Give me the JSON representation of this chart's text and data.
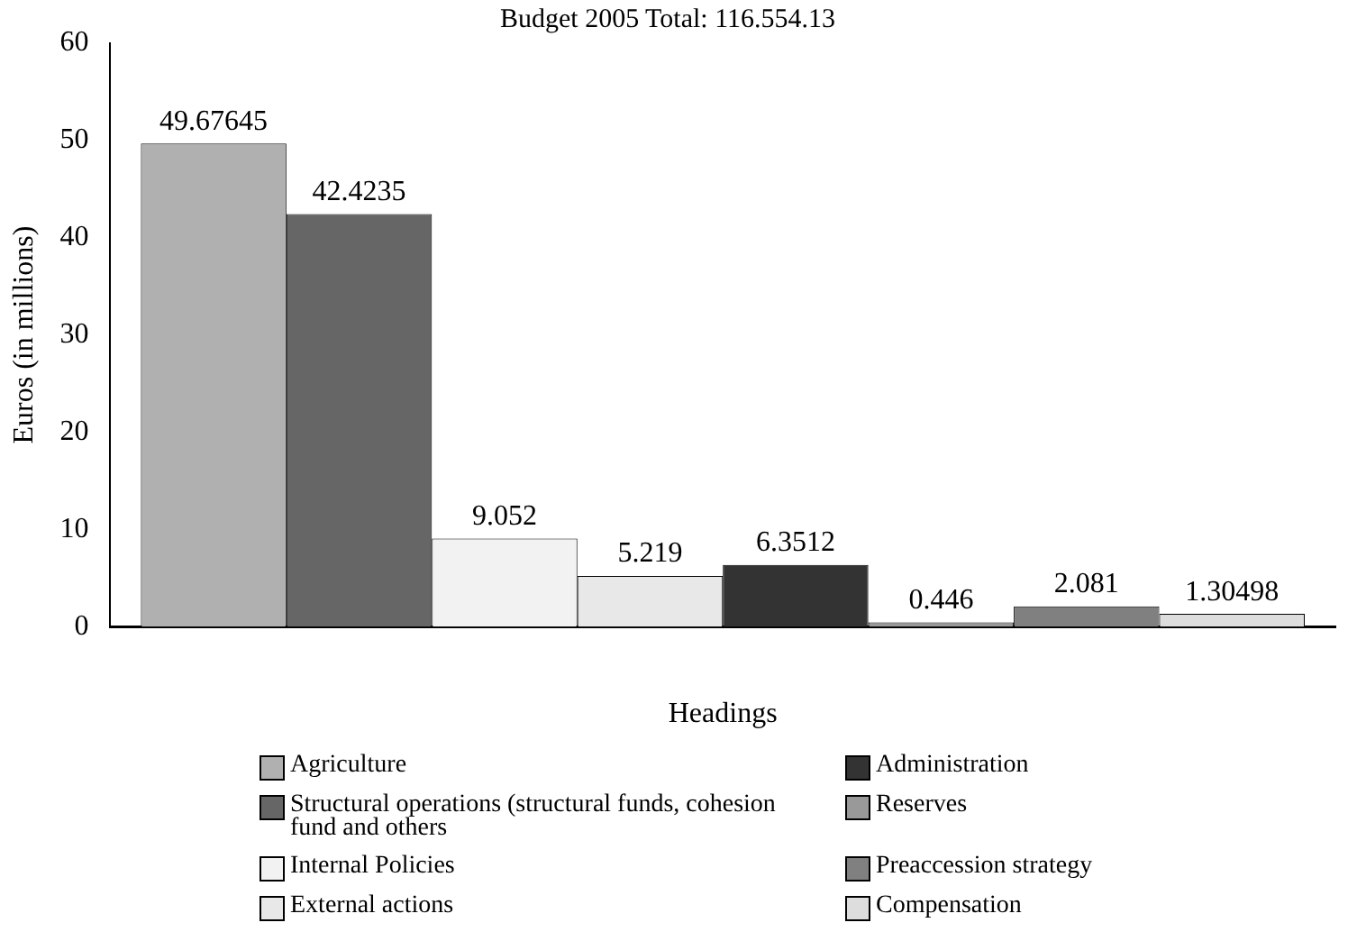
{
  "chart_data": {
    "type": "bar",
    "title": "Budget 2005 Total: 116.554.13",
    "xlabel": "Headings",
    "ylabel": "Euros (in millions)",
    "categories": [
      null
    ],
    "series": [
      {
        "name": "Agriculture",
        "color": "#b0b0b0",
        "values": [
          49.67645
        ]
      },
      {
        "name": "Structural operations (structural funds, cohesion fund and others",
        "color": "#666666",
        "values": [
          42.4235
        ]
      },
      {
        "name": "Internal Policies",
        "color": "#f2f2f2",
        "values": [
          9.052
        ]
      },
      {
        "name": "External actions",
        "color": "#e8e8e8",
        "values": [
          5.219
        ]
      },
      {
        "name": "Administration",
        "color": "#333333",
        "values": [
          6.3512
        ]
      },
      {
        "name": "Reserves",
        "color": "#999999",
        "values": [
          0.446
        ]
      },
      {
        "name": "Preaccession strategy",
        "color": "#808080",
        "values": [
          2.081
        ]
      },
      {
        "name": "Compensation",
        "color": "#dddddd",
        "values": [
          1.30498
        ]
      }
    ],
    "ylim": [
      0,
      60
    ],
    "yticks": [
      0,
      10,
      20,
      30,
      40,
      50,
      60
    ],
    "grid": false,
    "legend": "bottom",
    "data_labels": true
  }
}
